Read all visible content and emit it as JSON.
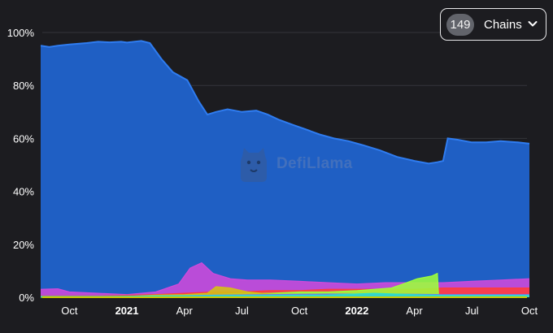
{
  "chain_selector": {
    "count": "149",
    "label": "Chains",
    "icon": "chevron-down-icon"
  },
  "watermark": {
    "text": "DefiLlama",
    "icon": "llama-logo-icon"
  },
  "colors": {
    "background": "#1c1c20",
    "gridline": "#33343a",
    "tick_text": "#ffffff"
  },
  "chart_data": {
    "type": "area",
    "stacked": true,
    "y_format": "percent",
    "ylim": [
      0,
      100
    ],
    "yticks": [
      0,
      20,
      40,
      60,
      80,
      100
    ],
    "ytick_labels": [
      "0%",
      "20%",
      "40%",
      "60%",
      "80%",
      "100%"
    ],
    "xticks": [
      {
        "x": 0.5,
        "label": "Oct",
        "bold": false
      },
      {
        "x": 1.5,
        "label": "2021",
        "bold": true
      },
      {
        "x": 2.5,
        "label": "Apr",
        "bold": false
      },
      {
        "x": 3.5,
        "label": "Jul",
        "bold": false
      },
      {
        "x": 4.5,
        "label": "Oct",
        "bold": false
      },
      {
        "x": 5.5,
        "label": "2022",
        "bold": true
      },
      {
        "x": 6.5,
        "label": "Apr",
        "bold": false
      },
      {
        "x": 7.5,
        "label": "Jul",
        "bold": false
      },
      {
        "x": 8.5,
        "label": "Oct",
        "bold": false
      }
    ],
    "xlim": [
      0,
      8.5
    ],
    "grid": true,
    "legend": "none",
    "series": [
      {
        "color": "#1f5fc4",
        "line": "#2f7cf0",
        "top": true,
        "points": [
          [
            0,
            95
          ],
          [
            0.15,
            94.5
          ],
          [
            0.3,
            95
          ],
          [
            0.5,
            95.5
          ],
          [
            0.8,
            96
          ],
          [
            1.0,
            96.5
          ],
          [
            1.2,
            96.3
          ],
          [
            1.4,
            96.5
          ],
          [
            1.5,
            96.2
          ],
          [
            1.75,
            96.8
          ],
          [
            1.9,
            96
          ],
          [
            2.1,
            90
          ],
          [
            2.3,
            85
          ],
          [
            2.55,
            82
          ],
          [
            2.75,
            74
          ],
          [
            2.9,
            69
          ],
          [
            3.05,
            70
          ],
          [
            3.25,
            71
          ],
          [
            3.5,
            70
          ],
          [
            3.75,
            70.5
          ],
          [
            3.95,
            69
          ],
          [
            4.15,
            67
          ],
          [
            4.4,
            65
          ],
          [
            4.6,
            63.5
          ],
          [
            4.85,
            61.5
          ],
          [
            5.1,
            60
          ],
          [
            5.35,
            59
          ],
          [
            5.6,
            57.5
          ],
          [
            5.9,
            55.5
          ],
          [
            6.2,
            53
          ],
          [
            6.5,
            51.5
          ],
          [
            6.75,
            50.5
          ],
          [
            6.9,
            51
          ],
          [
            7.0,
            51.5
          ],
          [
            7.08,
            60
          ],
          [
            7.25,
            59.5
          ],
          [
            7.5,
            58.5
          ],
          [
            7.75,
            58.5
          ],
          [
            8.0,
            59
          ],
          [
            8.3,
            58.5
          ],
          [
            8.5,
            58
          ]
        ]
      },
      {
        "color": "#d04adb",
        "points": [
          [
            0,
            3
          ],
          [
            0.3,
            3.2
          ],
          [
            0.5,
            2
          ],
          [
            1.0,
            1.5
          ],
          [
            1.5,
            1
          ],
          [
            2.0,
            2
          ],
          [
            2.4,
            5
          ],
          [
            2.6,
            11
          ],
          [
            2.8,
            13
          ],
          [
            3.0,
            9
          ],
          [
            3.3,
            7
          ],
          [
            3.6,
            6.5
          ],
          [
            4.0,
            6.5
          ],
          [
            4.5,
            6
          ],
          [
            5.0,
            5.5
          ],
          [
            5.5,
            5
          ],
          [
            6.0,
            5.5
          ],
          [
            6.5,
            5.5
          ],
          [
            7.0,
            5.5
          ],
          [
            7.5,
            6
          ],
          [
            8.0,
            6.5
          ],
          [
            8.5,
            7
          ]
        ]
      },
      {
        "color": "#ff3b3b",
        "points": [
          [
            0,
            0.5
          ],
          [
            1.0,
            0.5
          ],
          [
            2.0,
            1
          ],
          [
            2.5,
            1.5
          ],
          [
            3.0,
            2
          ],
          [
            3.5,
            2
          ],
          [
            4.0,
            2.5
          ],
          [
            4.5,
            2.5
          ],
          [
            5.0,
            3
          ],
          [
            5.5,
            3
          ],
          [
            6.0,
            3
          ],
          [
            6.5,
            3
          ],
          [
            7.0,
            3.5
          ],
          [
            7.5,
            3.5
          ],
          [
            8.0,
            3.5
          ],
          [
            8.5,
            3.5
          ]
        ]
      },
      {
        "color": "#9dff3a",
        "points": [
          [
            0,
            0
          ],
          [
            1.5,
            0
          ],
          [
            2.0,
            0.5
          ],
          [
            2.5,
            0.8
          ],
          [
            3.0,
            1
          ],
          [
            3.5,
            1.5
          ],
          [
            4.0,
            1.5
          ],
          [
            4.5,
            2
          ],
          [
            5.0,
            2
          ],
          [
            5.5,
            2.5
          ],
          [
            5.8,
            3
          ],
          [
            6.1,
            3.5
          ],
          [
            6.3,
            5
          ],
          [
            6.55,
            7
          ],
          [
            6.8,
            8
          ],
          [
            6.9,
            9
          ],
          [
            6.92,
            1
          ],
          [
            7.0,
            0.5
          ],
          [
            7.5,
            0.5
          ],
          [
            8.0,
            0.5
          ],
          [
            8.5,
            0.5
          ]
        ]
      },
      {
        "color": "#d4c214",
        "points": [
          [
            0,
            0.3
          ],
          [
            1.5,
            0.3
          ],
          [
            2.0,
            0.8
          ],
          [
            2.5,
            1
          ],
          [
            2.9,
            1.5
          ],
          [
            3.05,
            4
          ],
          [
            3.3,
            3.5
          ],
          [
            3.6,
            2
          ],
          [
            4.0,
            1.2
          ],
          [
            4.5,
            1
          ],
          [
            5.0,
            1
          ],
          [
            5.5,
            1
          ],
          [
            6.0,
            0.8
          ],
          [
            6.5,
            0.8
          ],
          [
            7.0,
            0.8
          ],
          [
            7.5,
            0.8
          ],
          [
            8.0,
            0.8
          ],
          [
            8.5,
            0.8
          ]
        ]
      },
      {
        "color": "#6b7df0",
        "points": [
          [
            0,
            0.2
          ],
          [
            1.5,
            0.2
          ],
          [
            2.0,
            0.4
          ],
          [
            3.0,
            0.8
          ],
          [
            4.0,
            1
          ],
          [
            5.0,
            1.2
          ],
          [
            6.0,
            1.2
          ],
          [
            7.0,
            1
          ],
          [
            8.0,
            1
          ],
          [
            8.5,
            1
          ]
        ]
      },
      {
        "color": "#2be0c8",
        "points": [
          [
            0,
            0.3
          ],
          [
            1.0,
            0.3
          ],
          [
            2.0,
            0.5
          ],
          [
            3.0,
            0.6
          ],
          [
            4.0,
            0.7
          ],
          [
            5.0,
            0.8
          ],
          [
            5.8,
            1.5
          ],
          [
            6.2,
            1.2
          ],
          [
            6.6,
            0.9
          ],
          [
            7.0,
            0.7
          ],
          [
            7.5,
            0.7
          ],
          [
            8.0,
            0.7
          ],
          [
            8.5,
            0.7
          ]
        ]
      }
    ]
  }
}
